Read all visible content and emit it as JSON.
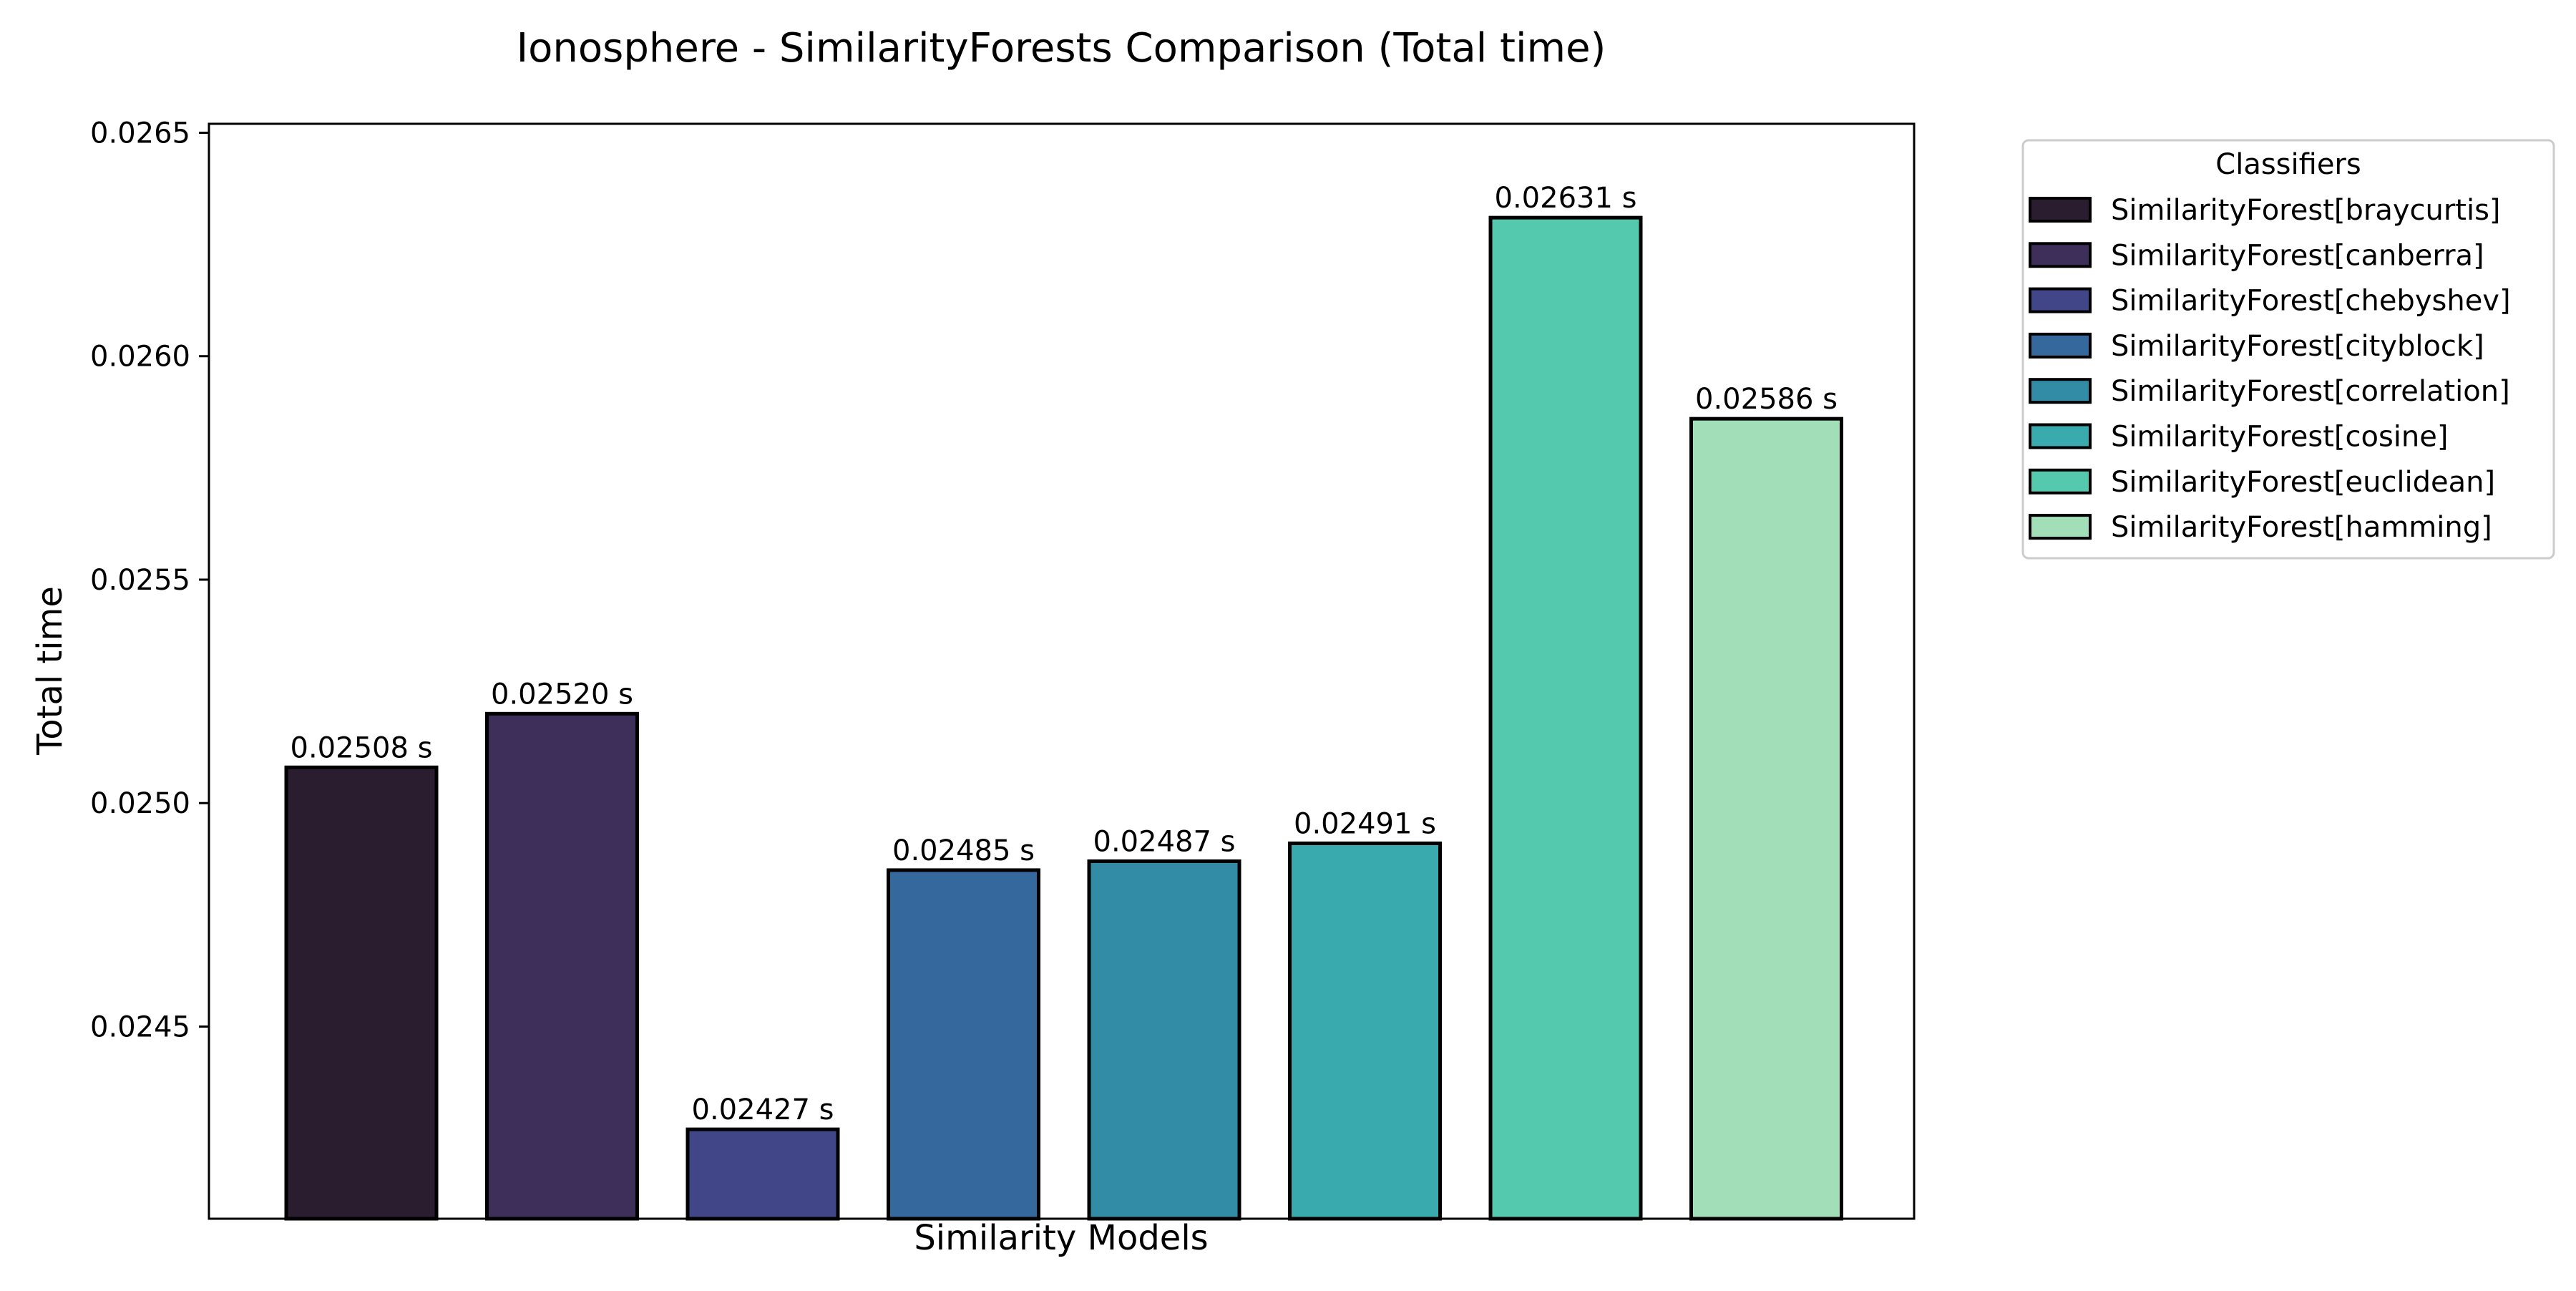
{
  "chart_data": {
    "type": "bar",
    "title": "Ionosphere - SimilarityForests Comparison (Total time)",
    "xlabel": "Similarity Models",
    "ylabel": "Total time",
    "ylim": [
      0.02407,
      0.02652
    ],
    "yticks": [
      0.0245,
      0.025,
      0.0255,
      0.026,
      0.0265
    ],
    "ytick_labels": [
      "0.0245",
      "0.0250",
      "0.0255",
      "0.0260",
      "0.0265"
    ],
    "grid": false,
    "legend_title": "Classifiers",
    "legend_position": "outside top-right",
    "categories": [
      "SimilarityForest[braycurtis]",
      "SimilarityForest[canberra]",
      "SimilarityForest[chebyshev]",
      "SimilarityForest[cityblock]",
      "SimilarityForest[correlation]",
      "SimilarityForest[cosine]",
      "SimilarityForest[euclidean]",
      "SimilarityForest[hamming]"
    ],
    "values": [
      0.02508,
      0.0252,
      0.02427,
      0.02485,
      0.02487,
      0.02491,
      0.02631,
      0.02586
    ],
    "value_labels": [
      "0.02508 s",
      "0.02520 s",
      "0.02427 s",
      "0.02485 s",
      "0.02487 s",
      "0.02491 s",
      "0.02631 s",
      "0.02586 s"
    ],
    "colors": [
      "#2a1d2f",
      "#3d2f5a",
      "#404688",
      "#35689c",
      "#338ca6",
      "#39aaae",
      "#55c9ad",
      "#a2dfb8"
    ],
    "edge_color": "#000000"
  }
}
